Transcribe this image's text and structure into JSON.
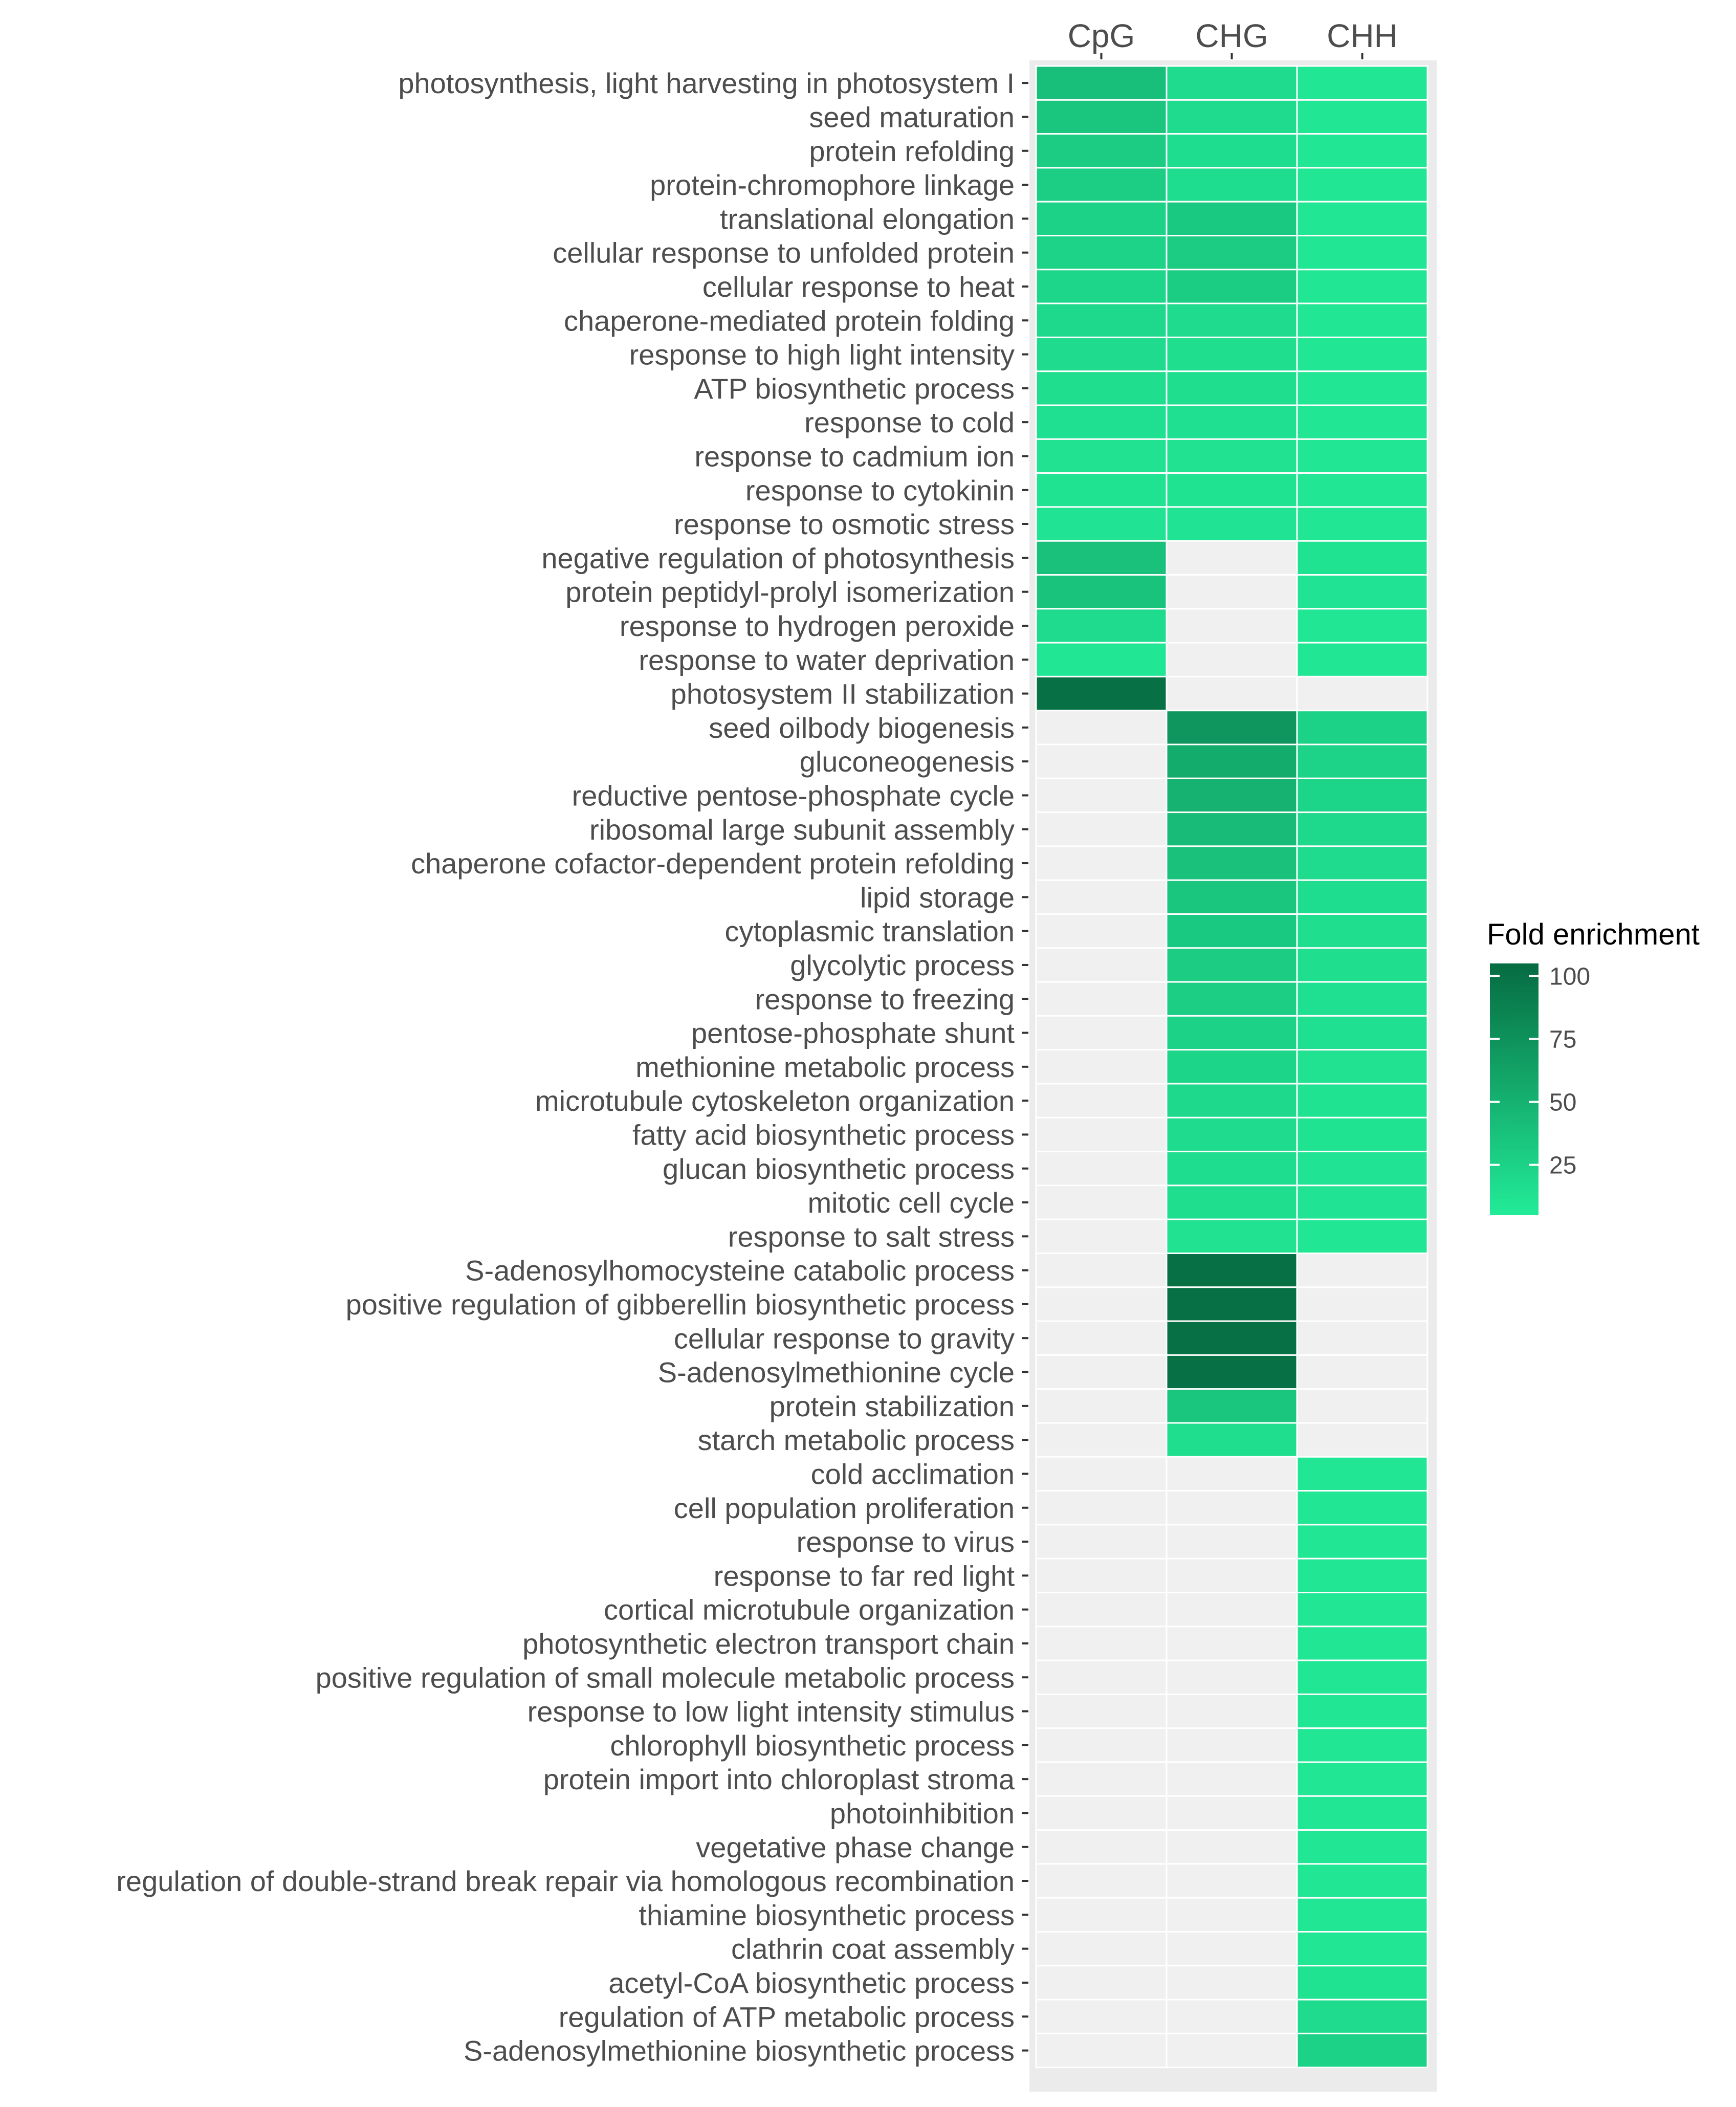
{
  "chart_data": {
    "type": "heatmap",
    "title": "",
    "xlabel": "",
    "ylabel": "",
    "columns": [
      "CpG",
      "CHG",
      "CHH"
    ],
    "rows": [
      "photosynthesis, light harvesting in photosystem I",
      "seed maturation",
      "protein refolding",
      "protein-chromophore linkage",
      "translational elongation",
      "cellular response to unfolded protein",
      "cellular response to heat",
      "chaperone-mediated protein folding",
      "response to high light intensity",
      "ATP biosynthetic process",
      "response to cold",
      "response to cadmium ion",
      "response to cytokinin",
      "response to osmotic stress",
      "negative regulation of photosynthesis",
      "protein peptidyl-prolyl isomerization",
      "response to hydrogen peroxide",
      "response to water deprivation",
      "photosystem II stabilization",
      "seed oilbody biogenesis",
      "gluconeogenesis",
      "reductive pentose-phosphate cycle",
      "ribosomal large subunit assembly",
      "chaperone cofactor-dependent protein refolding",
      "lipid storage",
      "cytoplasmic translation",
      "glycolytic process",
      "response to freezing",
      "pentose-phosphate shunt",
      "methionine metabolic process",
      "microtubule cytoskeleton organization",
      "fatty acid biosynthetic process",
      "glucan biosynthetic process",
      "mitotic cell cycle",
      "response to salt stress",
      "S-adenosylhomocysteine catabolic process",
      "positive regulation of gibberellin biosynthetic process",
      "cellular response to gravity",
      "S-adenosylmethionine cycle",
      "protein stabilization",
      "starch metabolic process",
      "cold acclimation",
      "cell population proliferation",
      "response to virus",
      "response to far red light",
      "cortical microtubule organization",
      "photosynthetic electron transport chain",
      "positive regulation of small molecule metabolic process",
      "response to low light intensity stimulus",
      "chlorophyll biosynthetic process",
      "protein import into chloroplast stroma",
      "photoinhibition",
      "vegetative phase change",
      "regulation of double-strand break repair via homologous recombination",
      "thiamine biosynthetic process",
      "clathrin coat assembly",
      "acetyl-CoA biosynthetic process",
      "regulation of ATP metabolic process",
      "S-adenosylmethionine biosynthetic process"
    ],
    "values": [
      [
        40,
        18,
        10
      ],
      [
        35,
        18,
        10
      ],
      [
        30,
        17,
        10
      ],
      [
        28,
        17,
        10
      ],
      [
        25,
        32,
        10
      ],
      [
        24,
        30,
        10
      ],
      [
        22,
        29,
        10
      ],
      [
        20,
        18,
        10
      ],
      [
        18,
        16,
        10
      ],
      [
        16,
        15,
        10
      ],
      [
        14,
        14,
        10
      ],
      [
        13,
        13,
        10
      ],
      [
        12,
        12,
        10
      ],
      [
        11,
        11,
        10
      ],
      [
        38,
        null,
        12
      ],
      [
        37,
        null,
        11
      ],
      [
        18,
        null,
        10
      ],
      [
        10,
        null,
        10
      ],
      [
        100,
        null,
        null
      ],
      [
        null,
        72,
        25
      ],
      [
        null,
        55,
        24
      ],
      [
        null,
        50,
        23
      ],
      [
        null,
        42,
        20
      ],
      [
        null,
        38,
        18
      ],
      [
        null,
        35,
        17
      ],
      [
        null,
        32,
        16
      ],
      [
        null,
        30,
        15
      ],
      [
        null,
        28,
        14
      ],
      [
        null,
        25,
        14
      ],
      [
        null,
        23,
        13
      ],
      [
        null,
        20,
        12
      ],
      [
        null,
        18,
        12
      ],
      [
        null,
        17,
        11
      ],
      [
        null,
        15,
        11
      ],
      [
        null,
        13,
        10
      ],
      [
        null,
        100,
        null
      ],
      [
        null,
        100,
        null
      ],
      [
        null,
        100,
        null
      ],
      [
        null,
        100,
        null
      ],
      [
        null,
        35,
        null
      ],
      [
        null,
        15,
        null
      ],
      [
        null,
        null,
        10
      ],
      [
        null,
        null,
        10
      ],
      [
        null,
        null,
        10
      ],
      [
        null,
        null,
        10
      ],
      [
        null,
        null,
        10
      ],
      [
        null,
        null,
        10
      ],
      [
        null,
        null,
        10
      ],
      [
        null,
        null,
        10
      ],
      [
        null,
        null,
        10
      ],
      [
        null,
        null,
        10
      ],
      [
        null,
        null,
        10
      ],
      [
        null,
        null,
        10
      ],
      [
        null,
        null,
        10
      ],
      [
        null,
        null,
        10
      ],
      [
        null,
        null,
        10
      ],
      [
        null,
        null,
        12
      ],
      [
        null,
        null,
        18
      ],
      [
        null,
        null,
        25
      ]
    ],
    "legend": {
      "title": "Fold enrichment",
      "ticks": [
        100,
        75,
        50,
        25
      ],
      "range": [
        5,
        105
      ],
      "low_color": "#22ec98",
      "high_color": "#066b41",
      "position": "right"
    },
    "missing_color": "#f0f0f0",
    "panel_background": "#ebebeb"
  }
}
